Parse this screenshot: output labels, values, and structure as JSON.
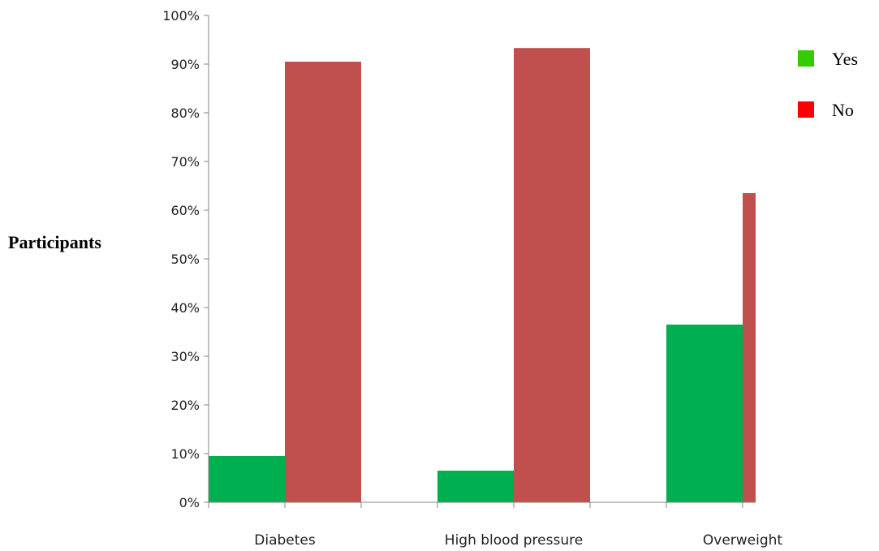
{
  "chart_data": {
    "type": "bar",
    "title": "",
    "xlabel": "",
    "ylabel": "Participants",
    "categories": [
      "Diabetes",
      "High blood pressure",
      "Overweight"
    ],
    "series": [
      {
        "name": "Yes",
        "values": [
          9.5,
          6.5,
          36.5
        ],
        "color": "#00b050",
        "legend_color": "#33cc00"
      },
      {
        "name": "No",
        "values": [
          90.5,
          93.3,
          63.5
        ],
        "color": "#c0504d",
        "legend_color": "#ff0000"
      }
    ],
    "ylim": [
      0,
      100
    ],
    "yticks": [
      "0%",
      "10%",
      "20%",
      "30%",
      "40%",
      "50%",
      "60%",
      "70%",
      "80%",
      "90%",
      "100%"
    ],
    "grid": false,
    "legend_position": "top-right",
    "axis_color": "#868686"
  }
}
